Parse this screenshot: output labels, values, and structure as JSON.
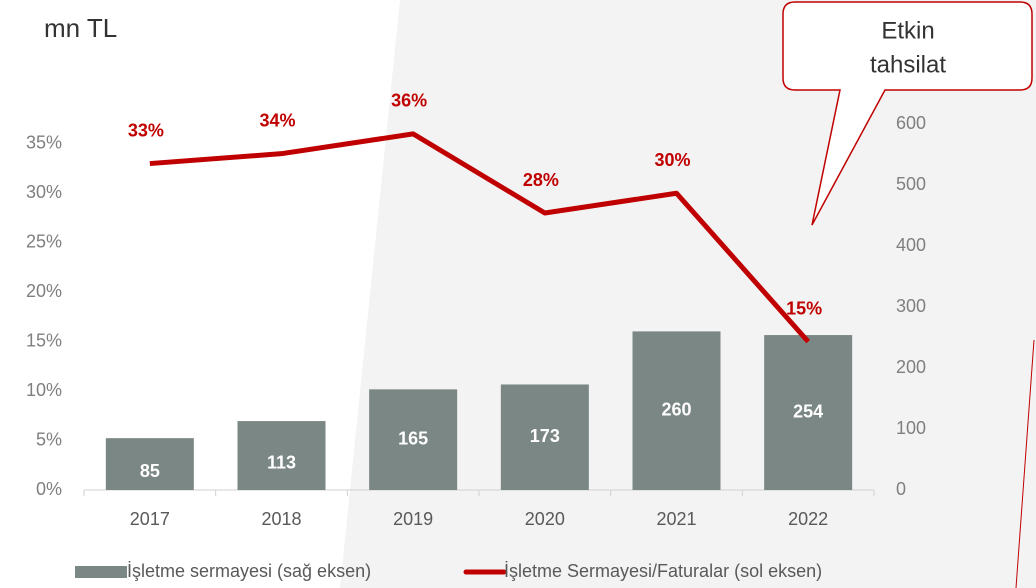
{
  "chart_data": {
    "type": "bar_line",
    "title": "mn TL",
    "annotation": [
      "Etkin",
      "tahsilat"
    ],
    "categories": [
      "2017",
      "2018",
      "2019",
      "2020",
      "2021",
      "2022"
    ],
    "series": [
      {
        "name": "İşletme sermayesi (sağ eksen)",
        "type": "bar",
        "color": "#7b8784",
        "axis": "y2",
        "values": [
          85,
          113,
          165,
          173,
          260,
          254
        ]
      },
      {
        "name": "İşletme Sermayesi/Faturalar (sol eksen)",
        "type": "line",
        "color": "#c00000",
        "axis": "y",
        "values": [
          33,
          34,
          36,
          28,
          30,
          15
        ],
        "value_labels": [
          "33%",
          "34%",
          "36%",
          "28%",
          "30%",
          "15%"
        ]
      }
    ],
    "ylim": [
      0,
      37
    ],
    "yticks": [
      {
        "value": 0,
        "label": "0%"
      },
      {
        "value": 5,
        "label": "5%"
      },
      {
        "value": 10,
        "label": "10%"
      },
      {
        "value": 15,
        "label": "15%"
      },
      {
        "value": 20,
        "label": "20%"
      },
      {
        "value": 25,
        "label": "25%"
      },
      {
        "value": 30,
        "label": "30%"
      },
      {
        "value": 35,
        "label": "35%"
      }
    ],
    "y2lim": [
      0,
      600
    ],
    "y2ticks": [
      0,
      100,
      200,
      300,
      400,
      500,
      600
    ],
    "grid": false
  }
}
